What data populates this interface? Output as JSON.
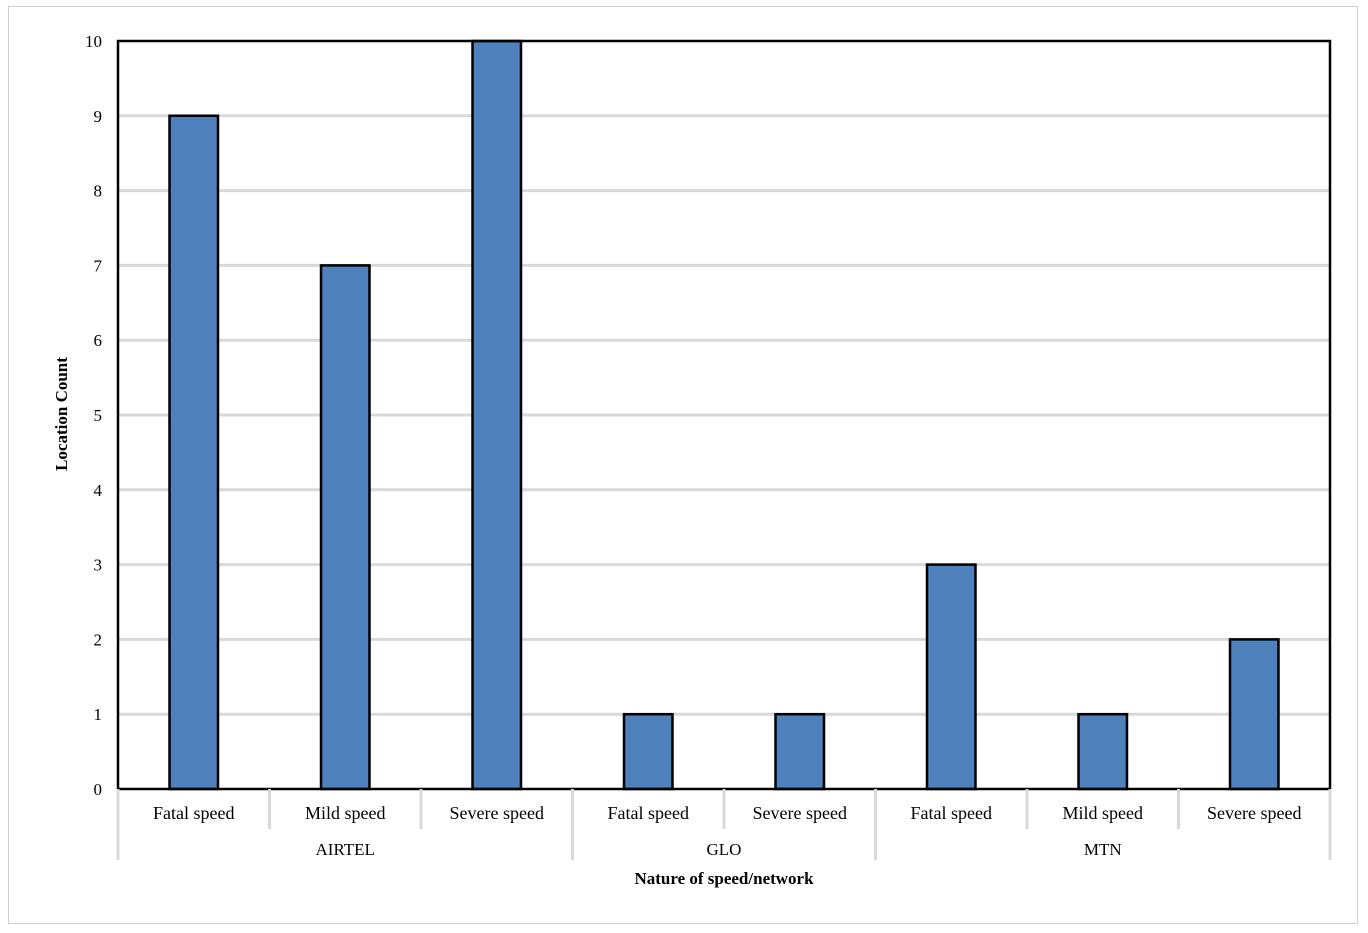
{
  "chart_data": {
    "type": "bar",
    "categories": [
      {
        "group": "AIRTEL",
        "label": "Fatal speed"
      },
      {
        "group": "AIRTEL",
        "label": "Mild speed"
      },
      {
        "group": "AIRTEL",
        "label": "Severe speed"
      },
      {
        "group": "GLO",
        "label": "Fatal speed"
      },
      {
        "group": "GLO",
        "label": "Severe speed"
      },
      {
        "group": "MTN",
        "label": "Fatal speed"
      },
      {
        "group": "MTN",
        "label": "Mild speed"
      },
      {
        "group": "MTN",
        "label": "Severe speed"
      }
    ],
    "groups": [
      "AIRTEL",
      "GLO",
      "MTN"
    ],
    "values": [
      9,
      7,
      10,
      1,
      1,
      3,
      1,
      2
    ],
    "xlabel": "Nature of speed/network",
    "ylabel": "Location Count",
    "ylim": [
      0,
      10
    ],
    "yticks": [
      "0",
      "1",
      "2",
      "3",
      "4",
      "5",
      "6",
      "7",
      "8",
      "9",
      "10"
    ],
    "grid": true,
    "legend": "none",
    "colors": {
      "bar_fill": "#4f81bd",
      "bar_stroke": "#000000",
      "grid": "#d9d9d9",
      "axis": "#000000"
    }
  }
}
